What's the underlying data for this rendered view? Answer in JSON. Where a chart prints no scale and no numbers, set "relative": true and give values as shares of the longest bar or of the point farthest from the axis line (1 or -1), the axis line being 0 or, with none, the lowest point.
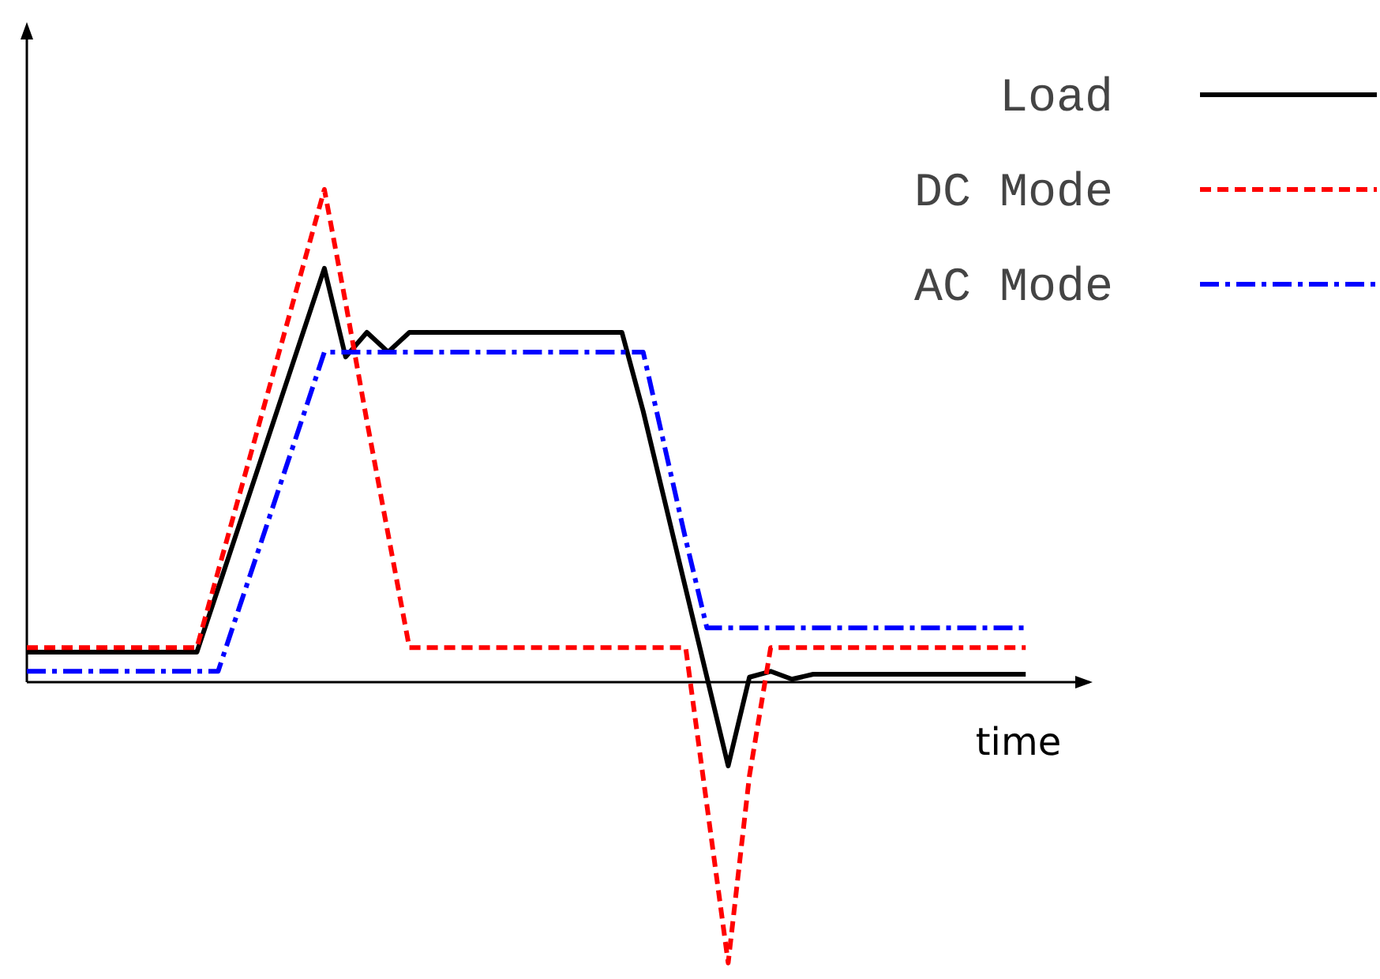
{
  "chart_data": {
    "type": "line",
    "relative": true,
    "xlabel": "time",
    "legend": "top right",
    "categories": [
      null,
      null,
      null,
      null,
      null,
      null,
      null,
      null,
      null,
      null,
      null,
      null,
      null,
      null,
      null,
      null,
      null,
      null,
      null,
      null,
      null,
      null,
      null,
      null,
      null,
      null,
      null,
      null,
      null,
      null,
      null,
      null,
      null,
      null,
      null,
      null,
      null,
      null,
      null,
      null,
      null,
      null,
      null,
      null,
      null,
      null,
      null,
      null
    ],
    "series": [
      {
        "name": "Load",
        "color": "#000000",
        "line_style": "solid",
        "values": [
          0.061,
          0.061,
          0.061,
          0.061,
          0.061,
          0.061,
          0.061,
          0.061,
          0.061,
          0.19,
          0.32,
          0.45,
          0.58,
          0.71,
          0.84,
          0.66,
          0.71,
          0.67,
          0.71,
          0.71,
          0.71,
          0.71,
          0.71,
          0.71,
          0.71,
          0.71,
          0.71,
          0.71,
          0.71,
          0.55,
          0.37,
          0.19,
          0.01,
          -0.17,
          0.01,
          0.022,
          0.006,
          0.016,
          0.016,
          0.016,
          0.016,
          0.016,
          0.016,
          0.016,
          0.016,
          0.016,
          0.016,
          0.016
        ]
      },
      {
        "name": "DC Mode",
        "color": "#ff0000",
        "line_style": "dashed",
        "values": [
          0.07,
          0.07,
          0.07,
          0.07,
          0.07,
          0.07,
          0.07,
          0.07,
          0.07,
          0.225,
          0.38,
          0.535,
          0.69,
          0.845,
          1,
          0.77,
          0.53,
          0.3,
          0.07,
          0.07,
          0.07,
          0.07,
          0.07,
          0.07,
          0.07,
          0.07,
          0.07,
          0.07,
          0.07,
          0.07,
          0.07,
          0.07,
          -0.25,
          -0.57,
          -0.19,
          0.07,
          0.07,
          0.07,
          0.07,
          0.07,
          0.07,
          0.07,
          0.07,
          0.07,
          0.07,
          0.07,
          0.07,
          0.07
        ]
      },
      {
        "name": "AC Mode",
        "color": "#0000ff",
        "line_style": "dashdot",
        "values": [
          0.022,
          0.022,
          0.022,
          0.022,
          0.022,
          0.022,
          0.022,
          0.022,
          0.022,
          0.022,
          0.152,
          0.281,
          0.411,
          0.54,
          0.67,
          0.67,
          0.67,
          0.67,
          0.67,
          0.67,
          0.67,
          0.67,
          0.67,
          0.67,
          0.67,
          0.67,
          0.67,
          0.67,
          0.67,
          0.67,
          0.48,
          0.29,
          0.11,
          0.11,
          0.11,
          0.11,
          0.11,
          0.11,
          0.11,
          0.11,
          0.11,
          0.11,
          0.11,
          0.11,
          0.11,
          0.11,
          0.11,
          0.11
        ]
      }
    ]
  }
}
